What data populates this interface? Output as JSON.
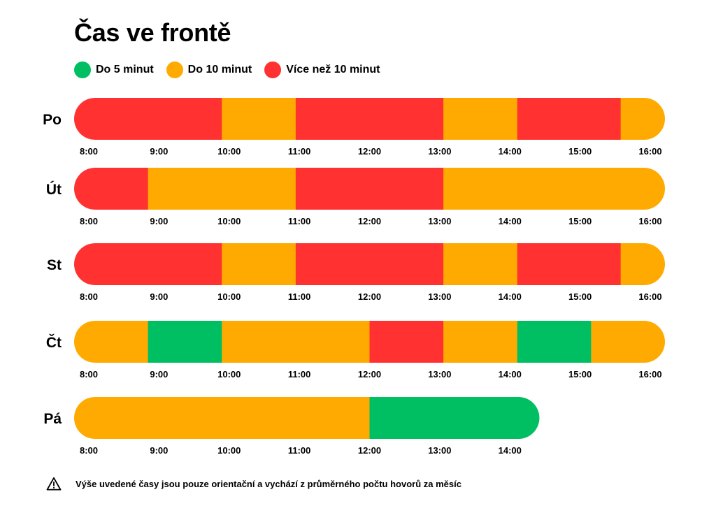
{
  "title": "Čas ve frontě",
  "legend": [
    {
      "label": "Do 5 minut",
      "color": "#00bf63"
    },
    {
      "label": "Do 10 minut",
      "color": "#ffaa00"
    },
    {
      "label": "Více než 10 minut",
      "color": "#ff3131"
    }
  ],
  "footnote": "Výše uvedené časy jsou pouze orientační a vychází z průměrného počtu hovorů za měsíc",
  "chart_data": {
    "type": "bar",
    "orientation": "horizontal-timeline",
    "categories": [
      "Po",
      "Út",
      "St",
      "Čt",
      "Pá"
    ],
    "x_unit": "hours",
    "xlim": [
      8,
      16
    ],
    "grid": false,
    "legend_position": "top-left",
    "rows": [
      {
        "day": "Po",
        "ticks": [
          "8:00",
          "9:00",
          "10:00",
          "11:00",
          "12:00",
          "13:00",
          "14:00",
          "15:00",
          "16:00"
        ],
        "segments": [
          {
            "start": 8.0,
            "end": 10.0,
            "level": 2
          },
          {
            "start": 10.0,
            "end": 11.0,
            "level": 1
          },
          {
            "start": 11.0,
            "end": 13.0,
            "level": 2
          },
          {
            "start": 13.0,
            "end": 14.0,
            "level": 1
          },
          {
            "start": 14.0,
            "end": 15.4,
            "level": 2
          },
          {
            "start": 15.4,
            "end": 16.0,
            "level": 1
          }
        ]
      },
      {
        "day": "Út",
        "ticks": [
          "8:00",
          "9:00",
          "10:00",
          "11:00",
          "12:00",
          "13:00",
          "14:00",
          "15:00",
          "16:00"
        ],
        "segments": [
          {
            "start": 8.0,
            "end": 9.0,
            "level": 2
          },
          {
            "start": 9.0,
            "end": 11.0,
            "level": 1
          },
          {
            "start": 11.0,
            "end": 13.0,
            "level": 2
          },
          {
            "start": 13.0,
            "end": 16.0,
            "level": 1
          }
        ]
      },
      {
        "day": "St",
        "ticks": [
          "8:00",
          "9:00",
          "10:00",
          "11:00",
          "12:00",
          "13:00",
          "14:00",
          "15:00",
          "16:00"
        ],
        "segments": [
          {
            "start": 8.0,
            "end": 10.0,
            "level": 2
          },
          {
            "start": 10.0,
            "end": 11.0,
            "level": 1
          },
          {
            "start": 11.0,
            "end": 13.0,
            "level": 2
          },
          {
            "start": 13.0,
            "end": 14.0,
            "level": 1
          },
          {
            "start": 14.0,
            "end": 15.4,
            "level": 2
          },
          {
            "start": 15.4,
            "end": 16.0,
            "level": 1
          }
        ]
      },
      {
        "day": "Čt",
        "ticks": [
          "8:00",
          "9:00",
          "10:00",
          "11:00",
          "12:00",
          "13:00",
          "14:00",
          "15:00",
          "16:00"
        ],
        "segments": [
          {
            "start": 8.0,
            "end": 9.0,
            "level": 1
          },
          {
            "start": 9.0,
            "end": 10.0,
            "level": 0
          },
          {
            "start": 10.0,
            "end": 12.0,
            "level": 1
          },
          {
            "start": 12.0,
            "end": 13.0,
            "level": 2
          },
          {
            "start": 13.0,
            "end": 14.0,
            "level": 1
          },
          {
            "start": 14.0,
            "end": 15.0,
            "level": 0
          },
          {
            "start": 15.0,
            "end": 16.0,
            "level": 1
          }
        ]
      },
      {
        "day": "Pá",
        "ticks": [
          "8:00",
          "9:00",
          "10:00",
          "11:00",
          "12:00",
          "13:00",
          "14:00"
        ],
        "segments": [
          {
            "start": 8.0,
            "end": 12.0,
            "level": 1
          },
          {
            "start": 12.0,
            "end": 14.3,
            "level": 0
          }
        ]
      }
    ]
  }
}
